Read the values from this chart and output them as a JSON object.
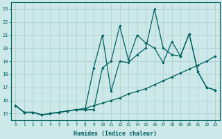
{
  "xlabel": "Humidex (Indice chaleur)",
  "xlim": [
    -0.5,
    23.5
  ],
  "ylim": [
    14.5,
    23.5
  ],
  "yticks": [
    15,
    16,
    17,
    18,
    19,
    20,
    21,
    22,
    23
  ],
  "xticks": [
    0,
    1,
    2,
    3,
    4,
    5,
    6,
    7,
    8,
    9,
    10,
    11,
    12,
    13,
    14,
    15,
    16,
    17,
    18,
    19,
    20,
    21,
    22,
    23
  ],
  "bg_color": "#cce8e8",
  "line_color": "#006060",
  "grid_color": "#aacccc",
  "series": [
    {
      "x": [
        0,
        1,
        2,
        3,
        4,
        5,
        6,
        7,
        8,
        9,
        10,
        11,
        12,
        13,
        14,
        15,
        16,
        17,
        18,
        19,
        20,
        21,
        22,
        23
      ],
      "y": [
        15.6,
        15.1,
        15.1,
        14.9,
        15.0,
        15.1,
        15.2,
        15.3,
        15.3,
        18.5,
        21.0,
        16.7,
        19.0,
        18.9,
        19.5,
        20.0,
        23.0,
        20.0,
        19.5,
        19.4,
        21.1,
        18.2,
        17.0,
        16.8
      ]
    },
    {
      "x": [
        0,
        1,
        2,
        3,
        4,
        5,
        6,
        7,
        8,
        9,
        10,
        11,
        12,
        13,
        14,
        15,
        16,
        17,
        18,
        19,
        20,
        21,
        22,
        23
      ],
      "y": [
        15.6,
        15.1,
        15.1,
        14.9,
        15.0,
        15.1,
        15.2,
        15.3,
        15.3,
        15.3,
        18.5,
        19.0,
        21.7,
        19.1,
        21.0,
        20.4,
        20.0,
        18.9,
        20.5,
        19.4,
        21.1,
        18.2,
        17.0,
        16.8
      ]
    },
    {
      "x": [
        0,
        1,
        2,
        3,
        4,
        5,
        6,
        7,
        8,
        9,
        10,
        11,
        12,
        13,
        14,
        15,
        16,
        17,
        18,
        19,
        20,
        21,
        22,
        23
      ],
      "y": [
        15.6,
        15.1,
        15.1,
        14.9,
        15.0,
        15.1,
        15.2,
        15.3,
        15.4,
        15.6,
        15.8,
        16.0,
        16.2,
        16.5,
        16.7,
        16.9,
        17.2,
        17.5,
        17.8,
        18.1,
        18.4,
        18.7,
        19.0,
        19.4
      ]
    }
  ]
}
